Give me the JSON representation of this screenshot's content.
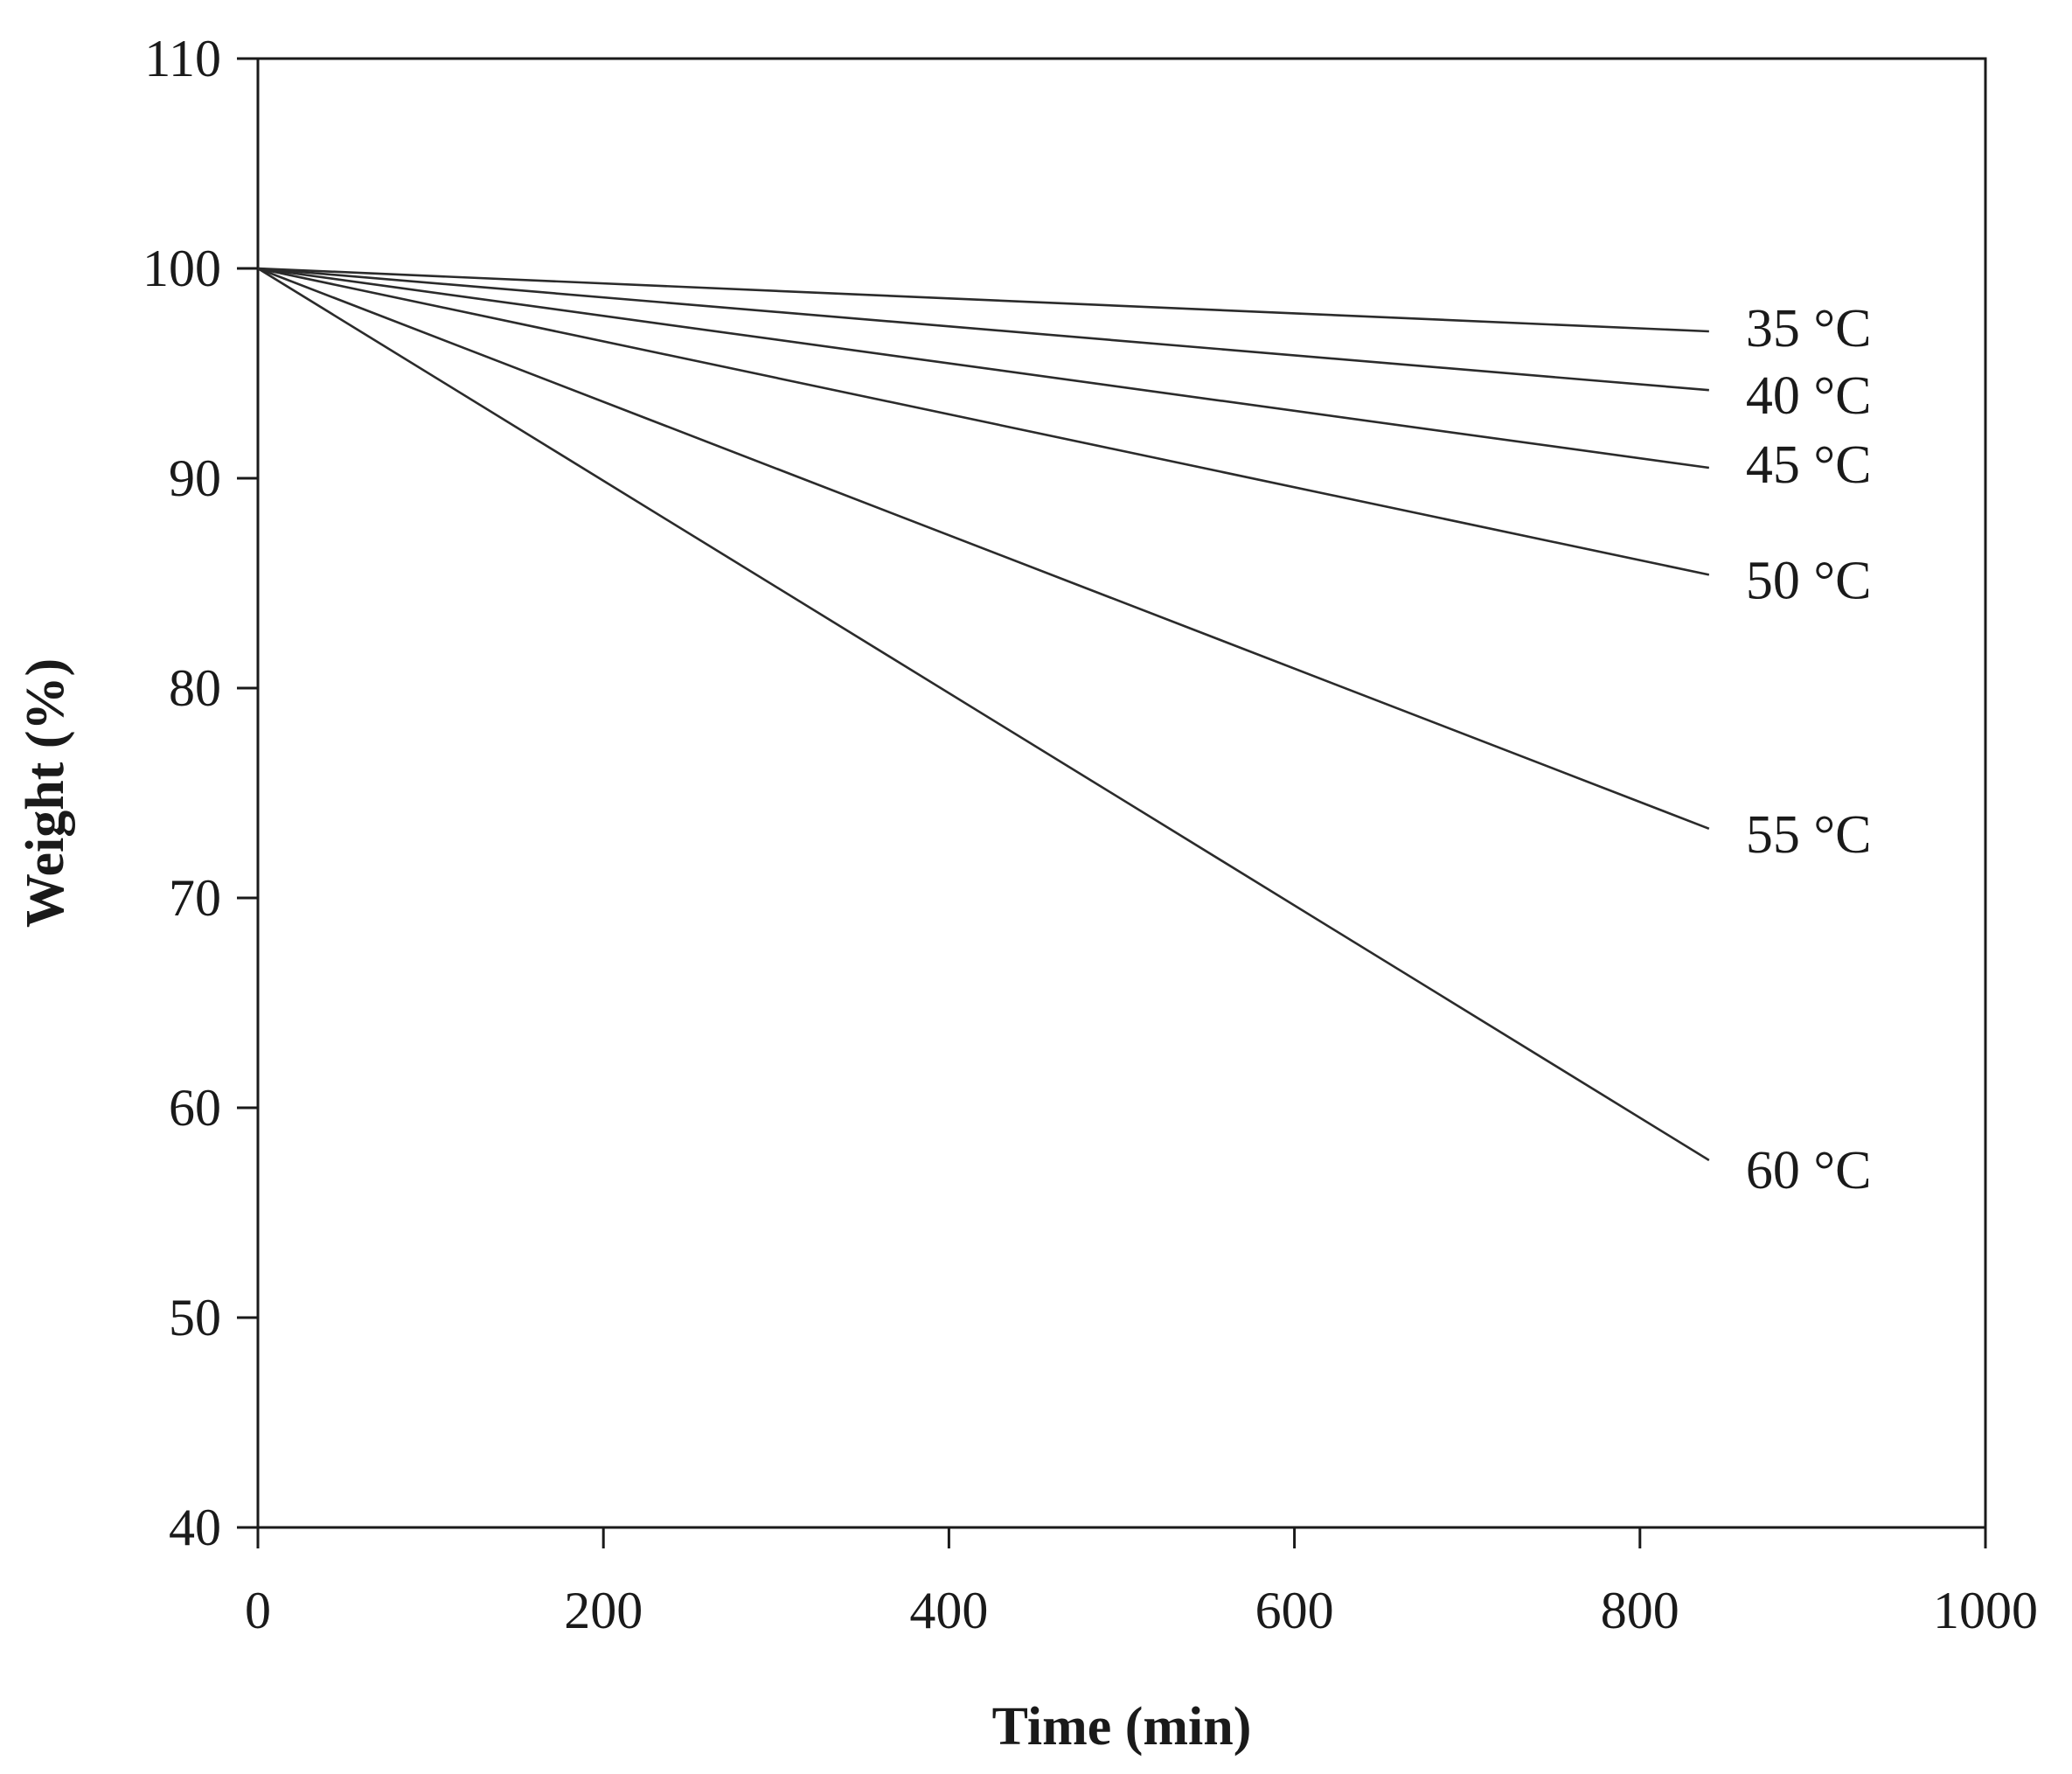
{
  "chart_data": {
    "type": "line",
    "title": "",
    "xlabel": "Time (min)",
    "ylabel": "Weight (%)",
    "xlim": [
      0,
      1000
    ],
    "ylim": [
      40,
      110
    ],
    "xticks": [
      0,
      200,
      400,
      600,
      800,
      1000
    ],
    "yticks": [
      40,
      50,
      60,
      70,
      80,
      90,
      100,
      110
    ],
    "grid": false,
    "legend": "inline-right",
    "series": [
      {
        "name": "35 °C",
        "label": "35 °C",
        "x": [
          0,
          840
        ],
        "y": [
          100,
          97.0
        ]
      },
      {
        "name": "40 °C",
        "label": "40 °C",
        "x": [
          0,
          840
        ],
        "y": [
          100,
          94.2
        ]
      },
      {
        "name": "45 °C",
        "label": "45 °C",
        "x": [
          0,
          840
        ],
        "y": [
          100,
          90.5
        ]
      },
      {
        "name": "50 °C",
        "label": "50 °C",
        "x": [
          0,
          840
        ],
        "y": [
          100,
          85.4
        ]
      },
      {
        "name": "55 °C",
        "label": "55 °C",
        "x": [
          0,
          840
        ],
        "y": [
          100,
          73.3
        ]
      },
      {
        "name": "60 °C",
        "label": "60 °C",
        "x": [
          0,
          840
        ],
        "y": [
          100,
          57.5
        ]
      }
    ],
    "line_color": "#2b2b2b"
  }
}
